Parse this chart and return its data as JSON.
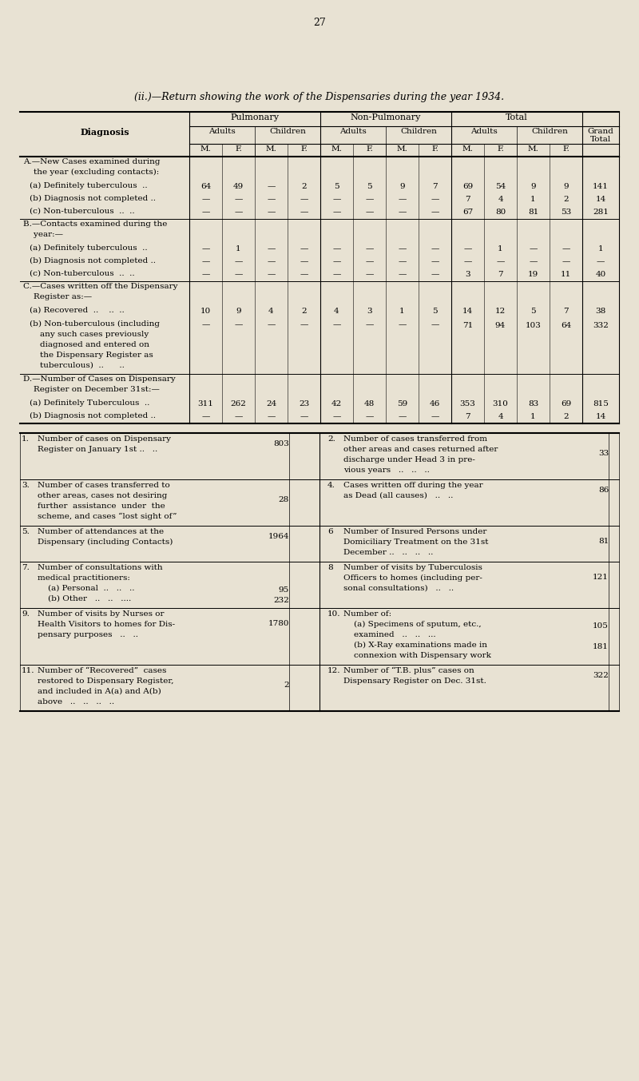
{
  "bg_color": "#e8e2d3",
  "page_number": "27",
  "title": "(ii.)—Return showing the work of the Dispensaries during the year 1934.",
  "section_A_header1": "A.—New Cases examined during",
  "section_A_header2": "    the year (excluding contacts):",
  "section_A_rows": [
    {
      "label": "(a) Definitely tuberculous  ..",
      "vals": [
        "64",
        "49",
        "—",
        "2",
        "5",
        "5",
        "9",
        "7",
        "69",
        "54",
        "9",
        "9",
        "141"
      ]
    },
    {
      "label": "(b) Diagnosis not completed ..",
      "vals": [
        "—",
        "—",
        "—",
        "—",
        "—",
        "—",
        "—",
        "—",
        "7",
        "4",
        "1",
        "2",
        "14"
      ]
    },
    {
      "label": "(c) Non-tuberculous  ..  ..",
      "vals": [
        "—",
        "—",
        "—",
        "—",
        "—",
        "—",
        "—",
        "—",
        "67",
        "80",
        "81",
        "53",
        "281"
      ]
    }
  ],
  "section_B_header1": "B.—Contacts examined during the",
  "section_B_header2": "    year:—",
  "section_B_rows": [
    {
      "label": "(a) Definitely tuberculous  ..",
      "vals": [
        "—",
        "1",
        "—",
        "—",
        "—",
        "—",
        "—",
        "—",
        "—",
        "1",
        "—",
        "—",
        "1"
      ]
    },
    {
      "label": "(b) Diagnosis not completed ..",
      "vals": [
        "—",
        "—",
        "—",
        "—",
        "—",
        "—",
        "—",
        "—",
        "—",
        "—",
        "—",
        "—",
        "—"
      ]
    },
    {
      "label": "(c) Non-tuberculous  ..  ..",
      "vals": [
        "—",
        "—",
        "—",
        "—",
        "—",
        "—",
        "—",
        "—",
        "3",
        "7",
        "19",
        "11",
        "40"
      ]
    }
  ],
  "section_C_header1": "C.—Cases written off the Dispensary",
  "section_C_header2": "    Register as:—",
  "section_C_rows": [
    {
      "label": "(a) Recovered  ..    ..  ..",
      "vals": [
        "10",
        "9",
        "4",
        "2",
        "4",
        "3",
        "1",
        "5",
        "14",
        "12",
        "5",
        "7",
        "38"
      ]
    },
    {
      "label": "(b) Non-tuberculous (including",
      "vals": [
        "—",
        "—",
        "—",
        "—",
        "—",
        "—",
        "—",
        "—",
        "71",
        "94",
        "103",
        "64",
        "332"
      ],
      "extra_lines": [
        "    any such cases previously",
        "    diagnosed and entered on",
        "    the Dispensary Register as",
        "    tuberculous)  ..      .."
      ]
    }
  ],
  "section_D_header1": "D.—Number of Cases on Dispensary",
  "section_D_header2": "    Register on December 31st:—",
  "section_D_rows": [
    {
      "label": "(a) Definitely Tuberculous  ..",
      "vals": [
        "311",
        "262",
        "24",
        "23",
        "42",
        "48",
        "59",
        "46",
        "353",
        "310",
        "83",
        "69",
        "815"
      ]
    },
    {
      "label": "(b) Diagnosis not completed ..",
      "vals": [
        "—",
        "—",
        "—",
        "—",
        "—",
        "—",
        "—",
        "—",
        "7",
        "4",
        "1",
        "2",
        "14"
      ]
    }
  ],
  "stats_left": [
    {
      "num": "1.",
      "lines": [
        "Number of cases on Dispensary",
        "Register on January 1st ..   .."
      ],
      "value": "803"
    },
    {
      "num": "3.",
      "lines": [
        "Number of cases transferred to",
        "other areas, cases not desiring",
        "further  assistance  under  the",
        "scheme, and cases “lost sight of”"
      ],
      "value": "28"
    },
    {
      "num": "5.",
      "lines": [
        "Number of attendances at the",
        "Dispensary (including Contacts)"
      ],
      "value": "1964"
    },
    {
      "num": "7.",
      "lines": [
        "Number of consultations with",
        "medical practitioners:",
        "    (a) Personal  ..   ..   ..",
        "    (b) Other   ..   ..   ...."
      ],
      "values": [
        "95",
        "232"
      ]
    },
    {
      "num": "9.",
      "lines": [
        "Number of visits by Nurses or",
        "Health Visitors to homes for Dis-",
        "pensary purposes   ..   .."
      ],
      "value": "1780"
    },
    {
      "num": "11.",
      "lines": [
        "Number of “Recovered”  cases",
        "restored to Dispensary Register,",
        "and included in A(a) and A(b)",
        "above   ..   ..   ..   .."
      ],
      "value": "2"
    }
  ],
  "stats_right": [
    {
      "num": "2.",
      "lines": [
        "Number of cases transferred from",
        "other areas and cases returned after",
        "discharge under Head 3 in pre-",
        "vious years   ..   ..   .."
      ],
      "value": "33"
    },
    {
      "num": "4.",
      "lines": [
        "Cases written off during the year",
        "as Dead (all causes)   ..   .."
      ],
      "value": "86"
    },
    {
      "num": "6",
      "lines": [
        "Number of Insured Persons under",
        "Domiciliary Treatment on the 31st",
        "December ..   ..   ..   .."
      ],
      "value": "81"
    },
    {
      "num": "8",
      "lines": [
        "Number of visits by Tuberculosis",
        "Officers to homes (including per-",
        "sonal consultations)   ..   .."
      ],
      "value": "121"
    },
    {
      "num": "10.",
      "lines": [
        "Number of:",
        "    (a) Specimens of sputum, etc.,",
        "    examined   ..   ..   ...",
        "    (b) X-Ray examinations made in",
        "    connexion with Dispensary work"
      ],
      "values": [
        "105",
        "181"
      ]
    },
    {
      "num": "12.",
      "lines": [
        "Number of “T.B. plus” cases on",
        "Dispensary Register on Dec. 31st."
      ],
      "value": "322"
    }
  ]
}
